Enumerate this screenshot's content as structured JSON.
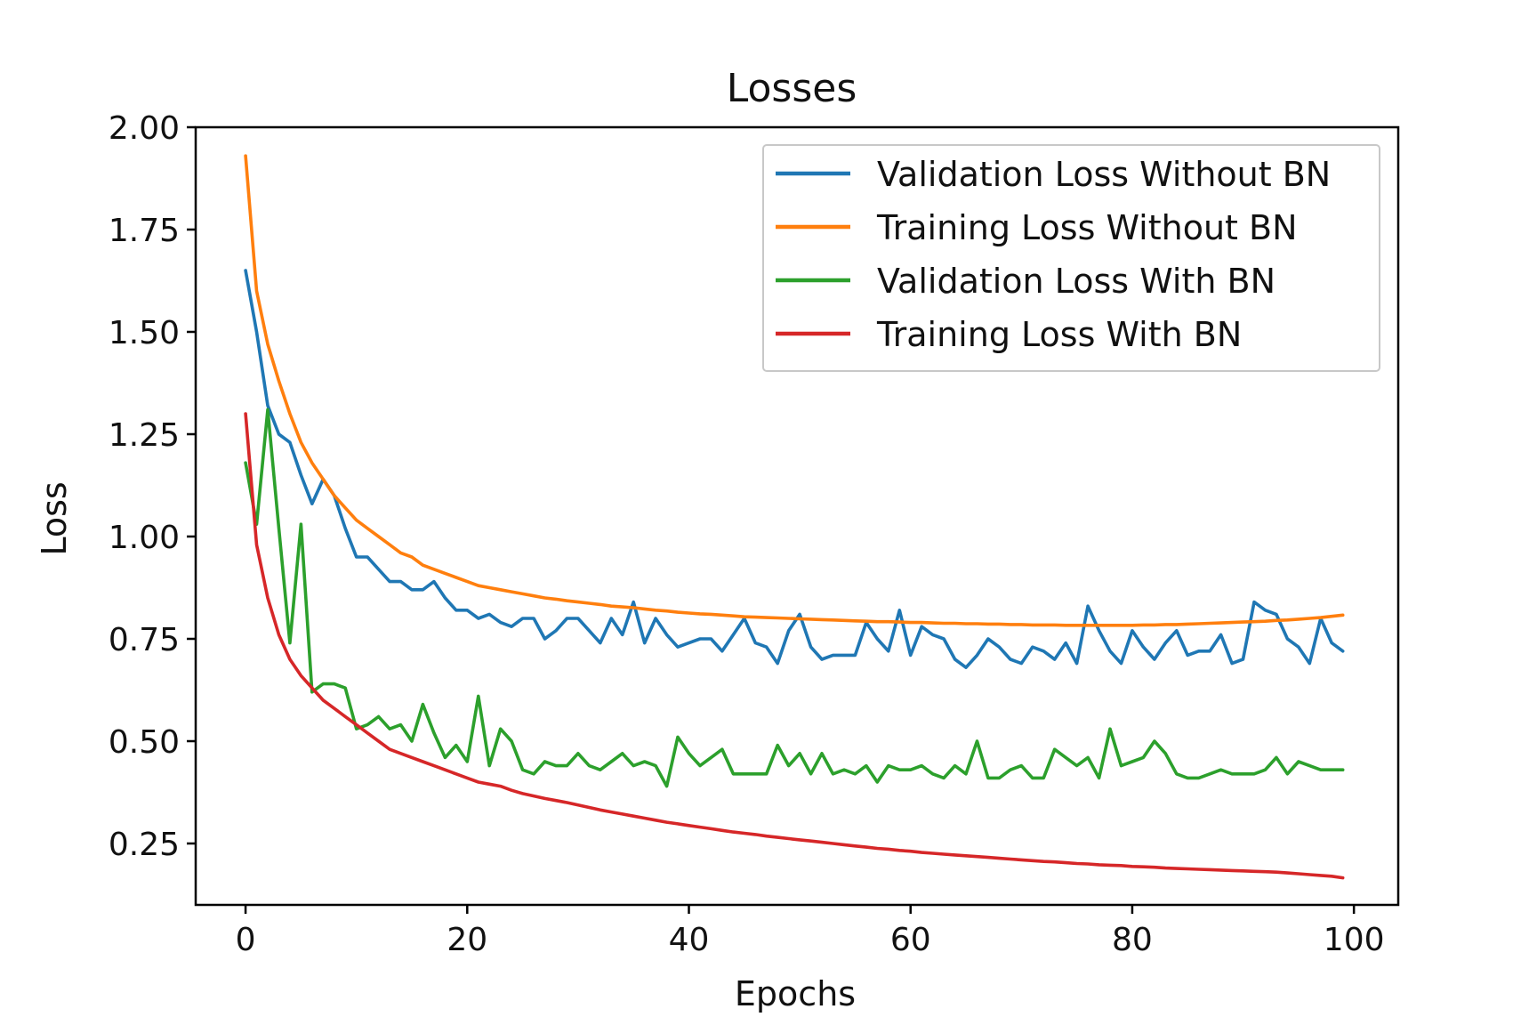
{
  "chart_data": {
    "type": "line",
    "title": "Losses",
    "xlabel": "Epochs",
    "ylabel": "Loss",
    "xlim": [
      -4.5,
      104
    ],
    "ylim": [
      0.1,
      2.0
    ],
    "xticks": [
      0,
      20,
      40,
      60,
      80,
      100
    ],
    "yticks": [
      0.25,
      0.5,
      0.75,
      1.0,
      1.25,
      1.5,
      1.75,
      2.0
    ],
    "xtick_labels": [
      "0",
      "20",
      "40",
      "60",
      "80",
      "100"
    ],
    "ytick_labels": [
      "0.25",
      "0.50",
      "0.75",
      "1.00",
      "1.25",
      "1.50",
      "1.75",
      "2.00"
    ],
    "grid": false,
    "legend_position": "top-right",
    "x": [
      0,
      1,
      2,
      3,
      4,
      5,
      6,
      7,
      8,
      9,
      10,
      11,
      12,
      13,
      14,
      15,
      16,
      17,
      18,
      19,
      20,
      21,
      22,
      23,
      24,
      25,
      26,
      27,
      28,
      29,
      30,
      31,
      32,
      33,
      34,
      35,
      36,
      37,
      38,
      39,
      40,
      41,
      42,
      43,
      44,
      45,
      46,
      47,
      48,
      49,
      50,
      51,
      52,
      53,
      54,
      55,
      56,
      57,
      58,
      59,
      60,
      61,
      62,
      63,
      64,
      65,
      66,
      67,
      68,
      69,
      70,
      71,
      72,
      73,
      74,
      75,
      76,
      77,
      78,
      79,
      80,
      81,
      82,
      83,
      84,
      85,
      86,
      87,
      88,
      89,
      90,
      91,
      92,
      93,
      94,
      95,
      96,
      97,
      98,
      99
    ],
    "series": [
      {
        "name": "Validation Loss Without BN",
        "color": "#1f77b4",
        "values": [
          1.65,
          1.5,
          1.32,
          1.25,
          1.23,
          1.15,
          1.08,
          1.14,
          1.1,
          1.02,
          0.95,
          0.95,
          0.92,
          0.89,
          0.89,
          0.87,
          0.87,
          0.89,
          0.85,
          0.82,
          0.82,
          0.8,
          0.81,
          0.79,
          0.78,
          0.8,
          0.8,
          0.75,
          0.77,
          0.8,
          0.8,
          0.77,
          0.74,
          0.8,
          0.76,
          0.84,
          0.74,
          0.8,
          0.76,
          0.73,
          0.74,
          0.75,
          0.75,
          0.72,
          0.76,
          0.8,
          0.74,
          0.73,
          0.69,
          0.77,
          0.81,
          0.73,
          0.7,
          0.71,
          0.71,
          0.71,
          0.79,
          0.75,
          0.72,
          0.82,
          0.71,
          0.78,
          0.76,
          0.75,
          0.7,
          0.68,
          0.71,
          0.75,
          0.73,
          0.7,
          0.69,
          0.73,
          0.72,
          0.7,
          0.74,
          0.69,
          0.83,
          0.77,
          0.72,
          0.69,
          0.77,
          0.73,
          0.7,
          0.74,
          0.77,
          0.71,
          0.72,
          0.72,
          0.76,
          0.69,
          0.7,
          0.84,
          0.82,
          0.81,
          0.75,
          0.73,
          0.69,
          0.8,
          0.74,
          0.72
        ]
      },
      {
        "name": "Training Loss Without BN",
        "color": "#ff7f0e",
        "values": [
          1.93,
          1.6,
          1.47,
          1.38,
          1.3,
          1.23,
          1.18,
          1.14,
          1.1,
          1.07,
          1.04,
          1.02,
          1.0,
          0.98,
          0.96,
          0.95,
          0.93,
          0.92,
          0.91,
          0.9,
          0.89,
          0.88,
          0.875,
          0.87,
          0.865,
          0.86,
          0.855,
          0.85,
          0.847,
          0.843,
          0.84,
          0.837,
          0.834,
          0.83,
          0.828,
          0.826,
          0.823,
          0.82,
          0.818,
          0.815,
          0.813,
          0.811,
          0.81,
          0.808,
          0.806,
          0.804,
          0.803,
          0.802,
          0.801,
          0.8,
          0.799,
          0.798,
          0.797,
          0.796,
          0.795,
          0.794,
          0.793,
          0.792,
          0.792,
          0.791,
          0.79,
          0.79,
          0.789,
          0.788,
          0.788,
          0.787,
          0.787,
          0.786,
          0.786,
          0.785,
          0.785,
          0.784,
          0.784,
          0.784,
          0.783,
          0.783,
          0.783,
          0.783,
          0.783,
          0.783,
          0.783,
          0.784,
          0.784,
          0.785,
          0.785,
          0.786,
          0.787,
          0.788,
          0.789,
          0.79,
          0.791,
          0.792,
          0.793,
          0.795,
          0.796,
          0.798,
          0.8,
          0.802,
          0.805,
          0.808
        ]
      },
      {
        "name": "Validation Loss With BN",
        "color": "#2ca02c",
        "values": [
          1.18,
          1.03,
          1.31,
          1.02,
          0.74,
          1.03,
          0.62,
          0.64,
          0.64,
          0.63,
          0.53,
          0.54,
          0.56,
          0.53,
          0.54,
          0.5,
          0.59,
          0.52,
          0.46,
          0.49,
          0.45,
          0.61,
          0.44,
          0.53,
          0.5,
          0.43,
          0.42,
          0.45,
          0.44,
          0.44,
          0.47,
          0.44,
          0.43,
          0.45,
          0.47,
          0.44,
          0.45,
          0.44,
          0.39,
          0.51,
          0.47,
          0.44,
          0.46,
          0.48,
          0.42,
          0.42,
          0.42,
          0.42,
          0.49,
          0.44,
          0.47,
          0.42,
          0.47,
          0.42,
          0.43,
          0.42,
          0.44,
          0.4,
          0.44,
          0.43,
          0.43,
          0.44,
          0.42,
          0.41,
          0.44,
          0.42,
          0.5,
          0.41,
          0.41,
          0.43,
          0.44,
          0.41,
          0.41,
          0.48,
          0.46,
          0.44,
          0.46,
          0.41,
          0.53,
          0.44,
          0.45,
          0.46,
          0.5,
          0.47,
          0.42,
          0.41,
          0.41,
          0.42,
          0.43,
          0.42,
          0.42,
          0.42,
          0.43,
          0.46,
          0.42,
          0.45,
          0.44,
          0.43,
          0.43,
          0.43
        ]
      },
      {
        "name": "Training Loss With BN",
        "color": "#d62728",
        "values": [
          1.3,
          0.98,
          0.85,
          0.76,
          0.7,
          0.66,
          0.63,
          0.6,
          0.58,
          0.56,
          0.54,
          0.52,
          0.5,
          0.48,
          0.47,
          0.46,
          0.45,
          0.44,
          0.43,
          0.42,
          0.41,
          0.4,
          0.395,
          0.39,
          0.38,
          0.372,
          0.366,
          0.36,
          0.355,
          0.35,
          0.344,
          0.338,
          0.332,
          0.327,
          0.322,
          0.317,
          0.312,
          0.307,
          0.302,
          0.298,
          0.294,
          0.29,
          0.286,
          0.282,
          0.278,
          0.275,
          0.272,
          0.268,
          0.265,
          0.262,
          0.259,
          0.256,
          0.253,
          0.25,
          0.247,
          0.244,
          0.241,
          0.238,
          0.236,
          0.233,
          0.231,
          0.228,
          0.226,
          0.224,
          0.222,
          0.22,
          0.218,
          0.216,
          0.214,
          0.212,
          0.21,
          0.208,
          0.206,
          0.205,
          0.203,
          0.201,
          0.2,
          0.198,
          0.197,
          0.196,
          0.194,
          0.193,
          0.192,
          0.19,
          0.189,
          0.188,
          0.187,
          0.186,
          0.185,
          0.184,
          0.183,
          0.182,
          0.181,
          0.18,
          0.178,
          0.176,
          0.174,
          0.172,
          0.17,
          0.166
        ]
      }
    ]
  }
}
